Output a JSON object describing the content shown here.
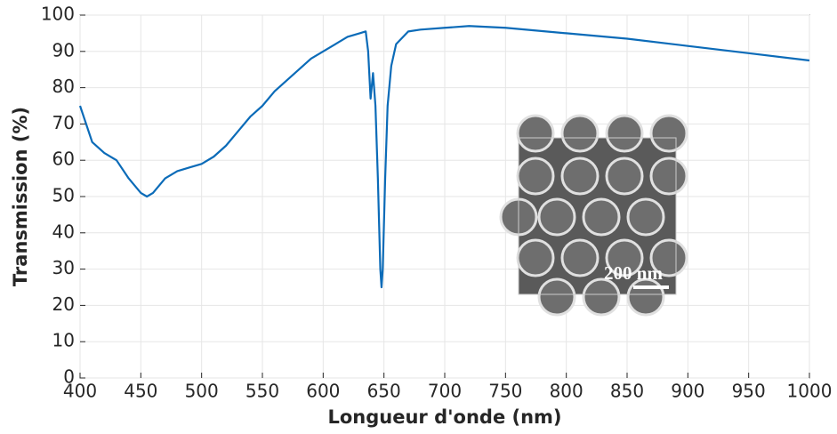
{
  "chart_data": {
    "type": "line",
    "xlabel": "Longueur d'onde (nm)",
    "ylabel": "Transmission (%)",
    "inset_label": "200 nm",
    "x": [
      400,
      405,
      410,
      420,
      430,
      440,
      450,
      455,
      460,
      470,
      480,
      490,
      500,
      510,
      520,
      530,
      540,
      550,
      560,
      570,
      580,
      590,
      600,
      610,
      620,
      630,
      635,
      637,
      639,
      641,
      643,
      645,
      647,
      648,
      649,
      651,
      653,
      656,
      660,
      670,
      680,
      700,
      720,
      750,
      800,
      850,
      900,
      950,
      1000
    ],
    "series": [
      {
        "name": "Transmission",
        "color": "#0b6bb8",
        "values": [
          75,
          70,
          65,
          62,
          60,
          55,
          51,
          50,
          51,
          55,
          57,
          58,
          59,
          61,
          64,
          68,
          72,
          75,
          79,
          82,
          85,
          88,
          90,
          92,
          94,
          95,
          95.5,
          90,
          77,
          84,
          75,
          55,
          30,
          25,
          30,
          55,
          75,
          86,
          92,
          95.5,
          96,
          96.5,
          97,
          96.5,
          95,
          93.5,
          91.5,
          89.5,
          87.5
        ]
      }
    ],
    "xlim": [
      400,
      1000
    ],
    "xticks": [
      400,
      450,
      500,
      550,
      600,
      650,
      700,
      750,
      800,
      850,
      900,
      950,
      1000
    ],
    "ylim": [
      0,
      100
    ],
    "yticks": [
      0,
      10,
      20,
      30,
      40,
      50,
      60,
      70,
      80,
      90,
      100
    ],
    "grid": true
  }
}
